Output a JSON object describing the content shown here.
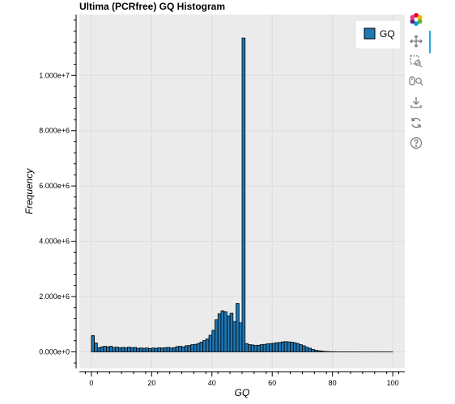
{
  "app": {
    "title": "Ultima (PCRfree) GQ Histogram"
  },
  "toolbar": {
    "tools": [
      {
        "name": "bokeh-logo-icon",
        "active": false
      },
      {
        "name": "pan-icon",
        "active": true
      },
      {
        "name": "box-zoom-icon",
        "active": false
      },
      {
        "name": "wheel-zoom-icon",
        "active": false
      },
      {
        "name": "save-icon",
        "active": false
      },
      {
        "name": "reset-icon",
        "active": false
      },
      {
        "name": "help-icon",
        "active": false
      }
    ]
  },
  "chart_data": {
    "type": "bar",
    "title": "Ultima (PCRfree) GQ Histogram",
    "xlabel": "GQ",
    "ylabel": "Frequency",
    "xlim": [
      -4,
      104
    ],
    "ylim": [
      -600000,
      12200000
    ],
    "xticks": [
      0,
      20,
      40,
      60,
      80,
      100
    ],
    "xtick_labels": [
      "0",
      "20",
      "40",
      "60",
      "80",
      "100"
    ],
    "yticks": [
      0,
      2000000,
      4000000,
      6000000,
      8000000,
      10000000
    ],
    "ytick_labels": [
      "0.000e+0",
      "2.000e+6",
      "4.000e+6",
      "6.000e+6",
      "8.000e+6",
      "1.000e+7"
    ],
    "grid": true,
    "legend": {
      "position": "top-right",
      "entries": [
        "GQ"
      ]
    },
    "colors": {
      "bar_fill": "#1f77b4",
      "bar_edge": "#000000",
      "plot_bg": "#ebebeb",
      "grid": "#dcdcdc"
    },
    "series": [
      {
        "name": "GQ",
        "bin_width": 1,
        "x": [
          0,
          1,
          2,
          3,
          4,
          5,
          6,
          7,
          8,
          9,
          10,
          11,
          12,
          13,
          14,
          15,
          16,
          17,
          18,
          19,
          20,
          21,
          22,
          23,
          24,
          25,
          26,
          27,
          28,
          29,
          30,
          31,
          32,
          33,
          34,
          35,
          36,
          37,
          38,
          39,
          40,
          41,
          42,
          43,
          44,
          45,
          46,
          47,
          48,
          49,
          50,
          51,
          52,
          53,
          54,
          55,
          56,
          57,
          58,
          59,
          60,
          61,
          62,
          63,
          64,
          65,
          66,
          67,
          68,
          69,
          70,
          71,
          72,
          73,
          74,
          75,
          76,
          77,
          78,
          79,
          80,
          81,
          82,
          83,
          84,
          85,
          86,
          87,
          88,
          89,
          90,
          91,
          92,
          93,
          94,
          95,
          96,
          97,
          98,
          99
        ],
        "values": [
          590000,
          320000,
          150000,
          180000,
          200000,
          180000,
          200000,
          160000,
          170000,
          150000,
          160000,
          150000,
          170000,
          150000,
          160000,
          130000,
          140000,
          130000,
          140000,
          120000,
          140000,
          130000,
          150000,
          140000,
          150000,
          160000,
          140000,
          150000,
          190000,
          200000,
          180000,
          220000,
          230000,
          260000,
          270000,
          300000,
          350000,
          410000,
          470000,
          600000,
          780000,
          1160000,
          1380000,
          1480000,
          1450000,
          1300000,
          1400000,
          1100000,
          1750000,
          1050000,
          11350000,
          300000,
          260000,
          250000,
          230000,
          240000,
          260000,
          270000,
          290000,
          300000,
          310000,
          330000,
          340000,
          360000,
          370000,
          360000,
          350000,
          330000,
          300000,
          260000,
          220000,
          170000,
          130000,
          90000,
          60000,
          40000,
          25000,
          15000,
          10000,
          6000,
          4000,
          3000,
          2000,
          1500,
          1200,
          1000,
          900,
          800,
          700,
          600,
          500,
          450,
          400,
          350,
          300,
          250,
          200,
          150,
          100,
          80
        ]
      }
    ]
  }
}
